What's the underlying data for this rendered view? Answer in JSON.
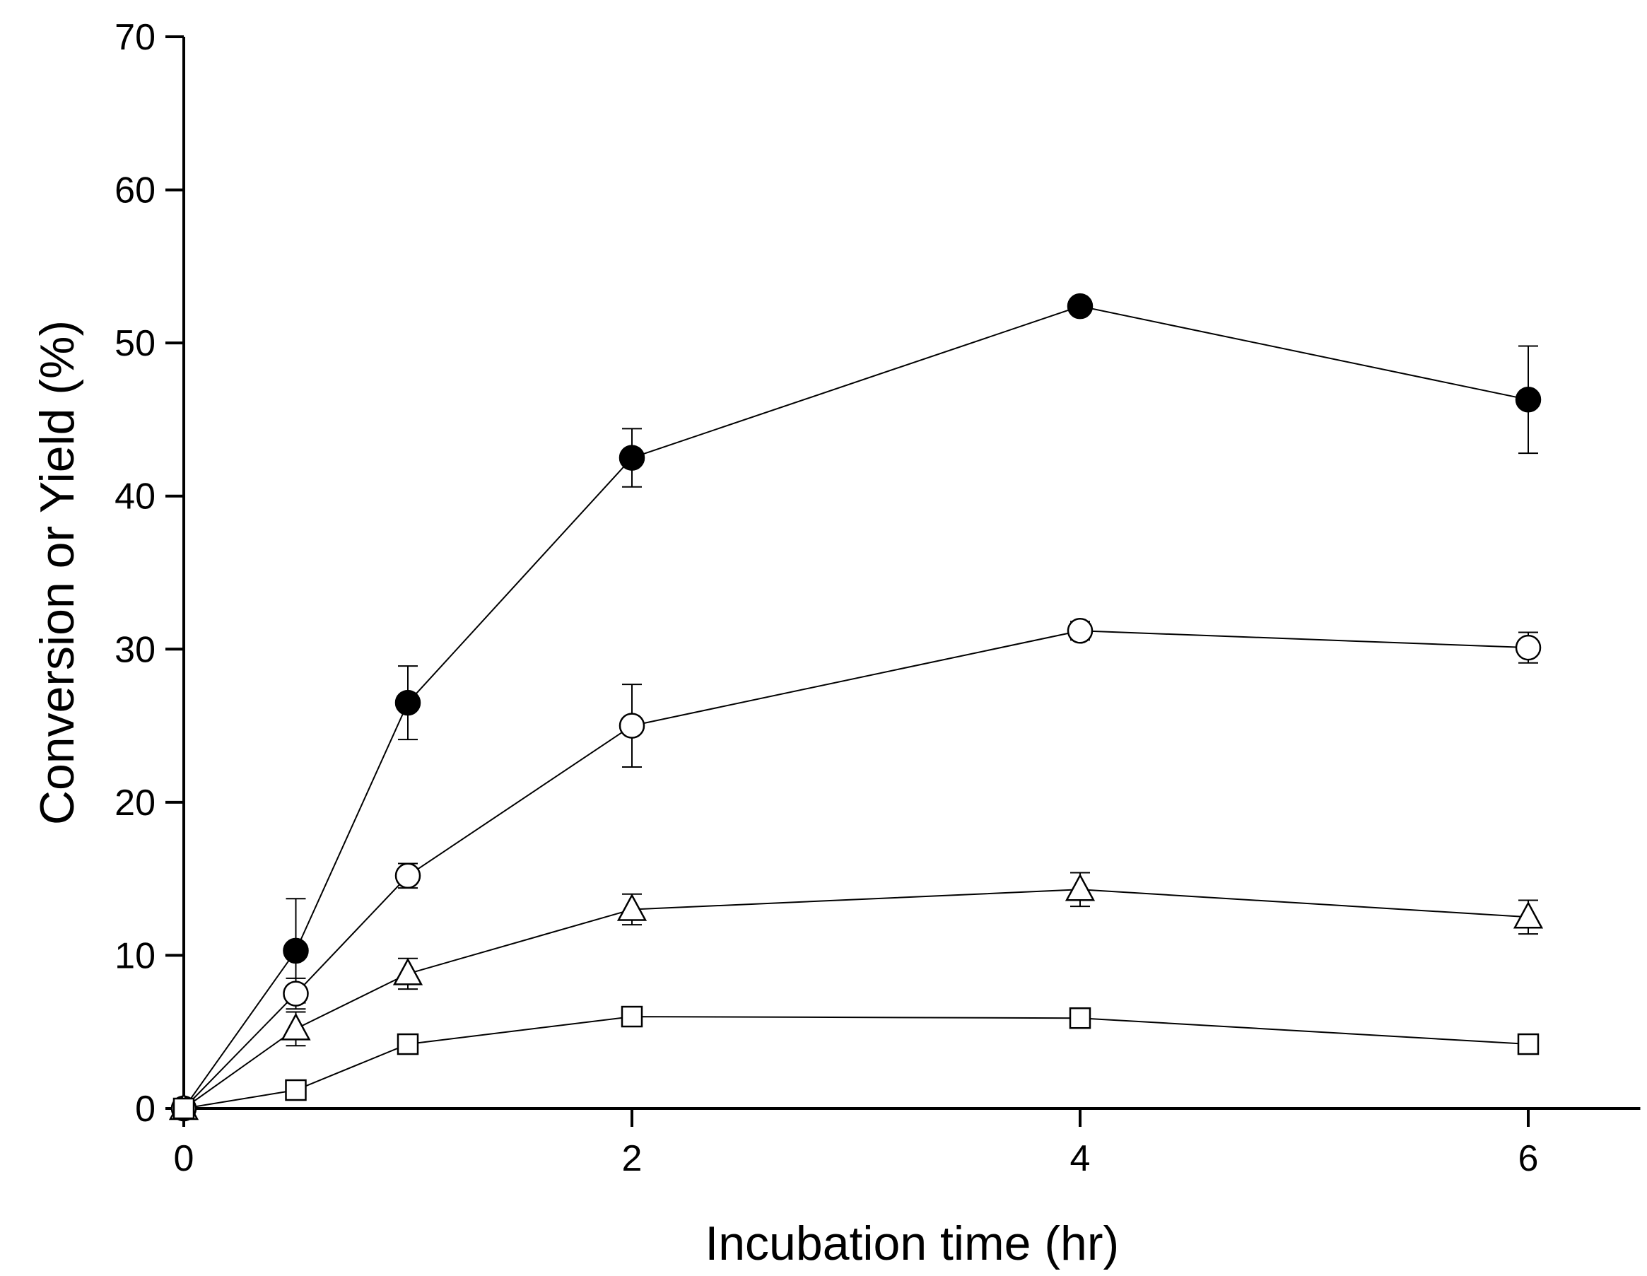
{
  "chart_data": {
    "type": "line",
    "title": "",
    "xlabel": "Incubation time (hr)",
    "ylabel": "Conversion or Yield (%)",
    "xlim": [
      0,
      6.5
    ],
    "ylim": [
      0,
      70
    ],
    "xticks": [
      "0",
      "2",
      "4",
      "6"
    ],
    "yticks": [
      "0",
      "10",
      "20",
      "30",
      "40",
      "50",
      "60",
      "70"
    ],
    "x": [
      0,
      0.5,
      1,
      2,
      4,
      6
    ],
    "grid": false,
    "legend": "none",
    "series": [
      {
        "name": "filled circles",
        "marker": "circle-filled",
        "values": [
          0,
          10.3,
          26.5,
          42.5,
          52.4,
          46.3
        ],
        "errors": [
          0,
          3.4,
          2.4,
          1.9,
          0.5,
          3.5
        ]
      },
      {
        "name": "open circles",
        "marker": "circle-open",
        "values": [
          0,
          7.5,
          15.2,
          25.0,
          31.2,
          30.1
        ],
        "errors": [
          0,
          1.0,
          0.8,
          2.7,
          0.6,
          1.0
        ]
      },
      {
        "name": "open triangles",
        "marker": "triangle-open",
        "values": [
          0,
          5.2,
          8.8,
          13.0,
          14.3,
          12.5
        ],
        "errors": [
          0,
          1.1,
          1.0,
          1.0,
          1.1,
          1.1
        ]
      },
      {
        "name": "open squares",
        "marker": "square-open",
        "values": [
          0,
          1.2,
          4.2,
          6.0,
          5.9,
          4.2
        ],
        "errors": [
          0,
          0.5,
          0.5,
          0.5,
          0.5,
          0.4
        ]
      }
    ]
  }
}
